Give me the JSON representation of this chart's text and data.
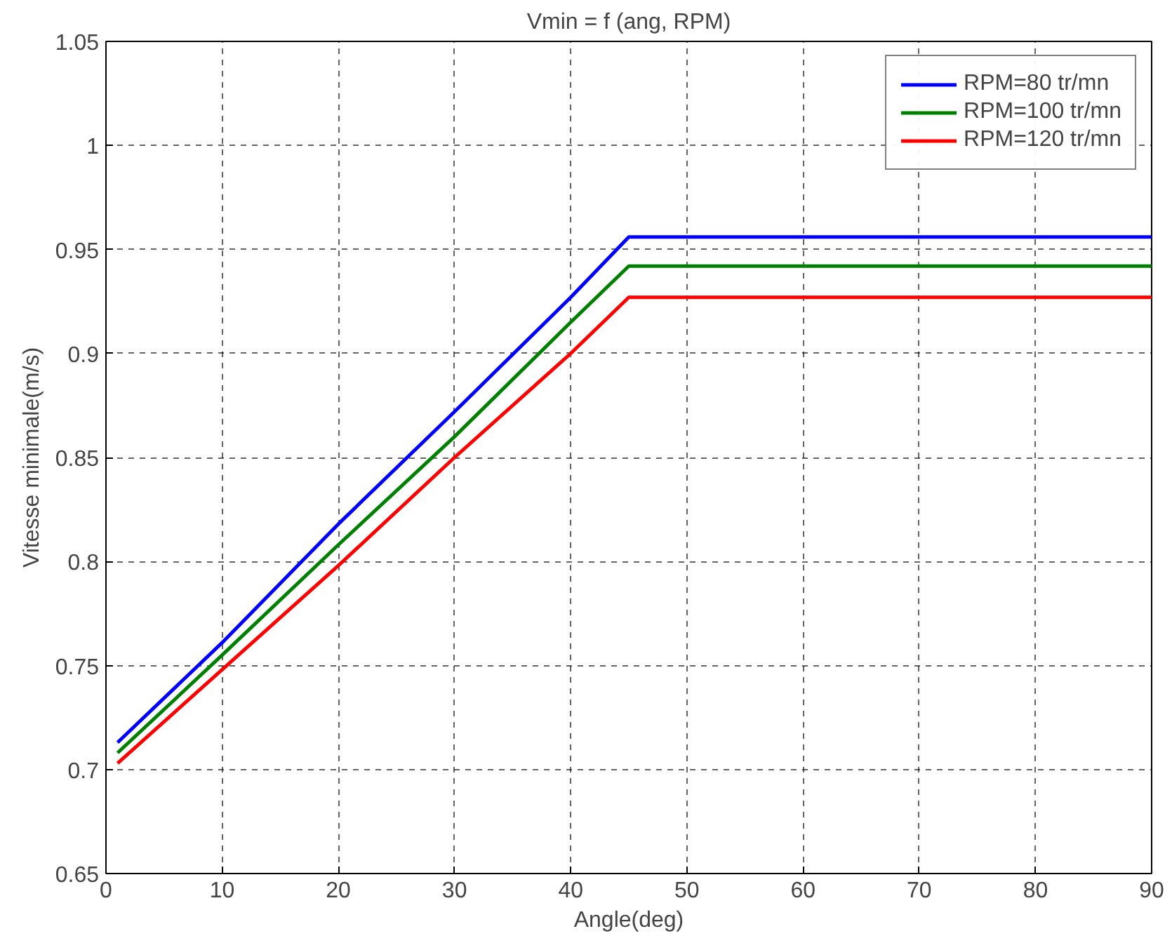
{
  "chart_data": {
    "type": "line",
    "title": "Vmin = f (ang, RPM)",
    "xlabel": "Angle(deg)",
    "ylabel": "Vitesse minimale(m/s)",
    "xlim": [
      0,
      90
    ],
    "ylim": [
      0.65,
      1.05
    ],
    "xticks": [
      0,
      10,
      20,
      30,
      40,
      50,
      60,
      70,
      80,
      90
    ],
    "yticks": [
      0.65,
      0.7,
      0.75,
      0.8,
      0.85,
      0.9,
      0.95,
      1,
      1.05
    ],
    "grid": true,
    "legend": "top right",
    "line_style": "solid",
    "marker": "none",
    "x": [
      1,
      10,
      20,
      30,
      40,
      45,
      90
    ],
    "series": [
      {
        "name": "RPM=80 tr/mn",
        "color": "#0000ff",
        "values": [
          0.713,
          0.761,
          0.818,
          0.872,
          0.927,
          0.956,
          0.956
        ]
      },
      {
        "name": "RPM=100 tr/mn",
        "color": "#008000",
        "values": [
          0.708,
          0.755,
          0.808,
          0.86,
          0.915,
          0.942,
          0.942
        ]
      },
      {
        "name": "RPM=120 tr/mn",
        "color": "#ff0000",
        "values": [
          0.703,
          0.748,
          0.798,
          0.85,
          0.9,
          0.927,
          0.927
        ]
      }
    ]
  }
}
